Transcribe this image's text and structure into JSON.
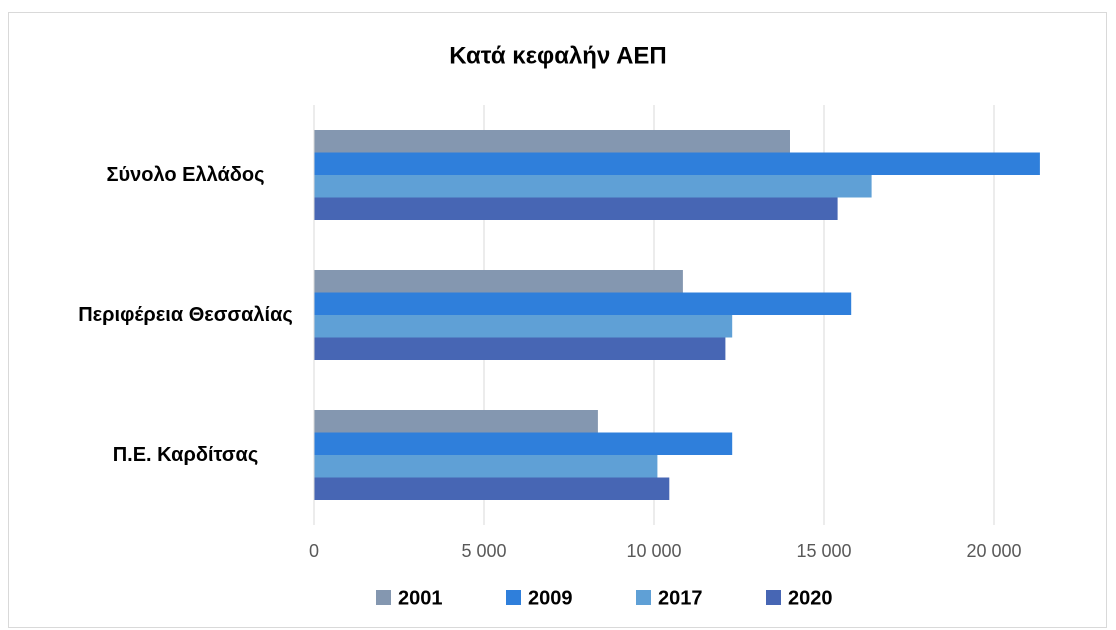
{
  "chart_data": {
    "type": "hbar",
    "title": "Κατά κεφαλήν ΑΕΠ",
    "categories": [
      "Σύνολο Ελλάδος",
      "Περιφέρεια Θεσσαλίας",
      "Π.Ε. Καρδίτσας"
    ],
    "series": [
      {
        "name": "2001",
        "color": "#8497b0",
        "values": [
          14000,
          10850,
          8350
        ]
      },
      {
        "name": "2009",
        "color": "#2f7fdb",
        "values": [
          21350,
          15800,
          12300
        ]
      },
      {
        "name": "2017",
        "color": "#5fa0d6",
        "values": [
          16400,
          12300,
          10100
        ]
      },
      {
        "name": "2020",
        "color": "#4766b4",
        "values": [
          15400,
          12100,
          10450
        ]
      }
    ],
    "xlim": [
      0,
      22500
    ],
    "xticks": [
      0,
      {
        "value": 5000,
        "label": "5 000"
      },
      {
        "value": 10000,
        "label": "10 000"
      },
      {
        "value": 15000,
        "label": "15 000"
      },
      {
        "value": 20000,
        "label": "20 000"
      }
    ],
    "grid": true,
    "legend": "bottom"
  }
}
